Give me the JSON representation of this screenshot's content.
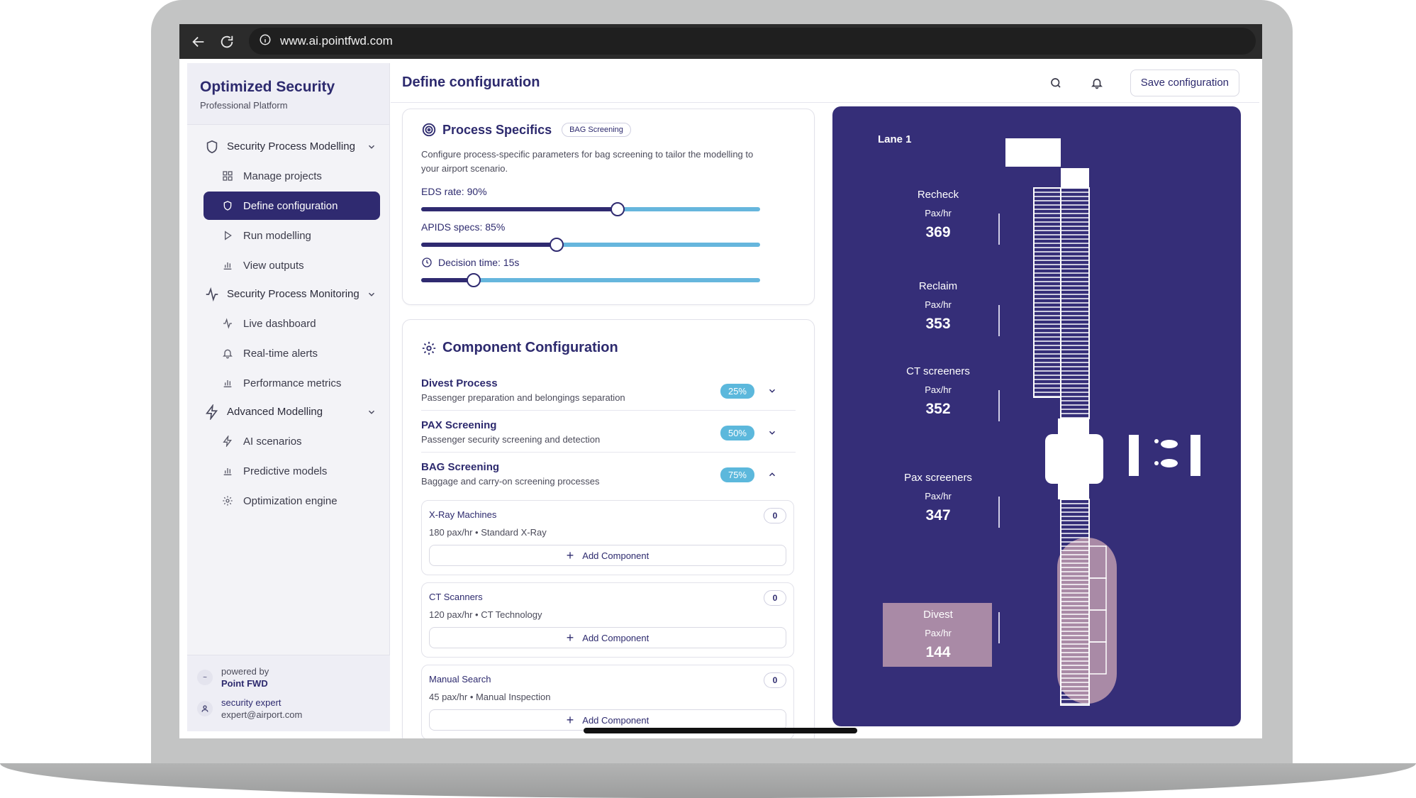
{
  "browser": {
    "url": "www.ai.pointfwd.com"
  },
  "sidebar": {
    "brand_title": "Optimized Security",
    "brand_subtitle": "Professional Platform",
    "groups": [
      {
        "label": "Security Process Modelling",
        "icon": "shield-icon",
        "items": [
          {
            "label": "Manage projects",
            "icon": "grid-icon"
          },
          {
            "label": "Define configuration",
            "icon": "shield-icon",
            "active": true
          },
          {
            "label": "Run modelling",
            "icon": "play-icon"
          },
          {
            "label": "View outputs",
            "icon": "bar-chart-icon"
          }
        ]
      },
      {
        "label": "Security Process Monitoring",
        "icon": "activity-icon",
        "items": [
          {
            "label": "Live dashboard",
            "icon": "activity-icon"
          },
          {
            "label": "Real-time alerts",
            "icon": "bell-icon"
          },
          {
            "label": "Performance metrics",
            "icon": "bar-chart-icon"
          }
        ]
      },
      {
        "label": "Advanced Modelling",
        "icon": "lightning-icon",
        "items": [
          {
            "label": "AI scenarios",
            "icon": "lightning-icon"
          },
          {
            "label": "Predictive models",
            "icon": "bar-chart-icon"
          },
          {
            "label": "Optimization engine",
            "icon": "gear-icon"
          }
        ]
      }
    ],
    "footer": {
      "powered_by": "powered by",
      "company": "Point FWD",
      "user_name": "security expert",
      "user_email": "expert@airport.com"
    }
  },
  "header": {
    "title": "Define configuration",
    "save_label": "Save configuration"
  },
  "process_specifics": {
    "title": "Process Specifics",
    "badge": "BAG Screening",
    "description": "Configure process-specific parameters for bag screening to tailor the modelling to your airport scenario.",
    "sliders": [
      {
        "label": "EDS rate: 90%",
        "value": 0.58
      },
      {
        "label": "APIDS specs: 85%",
        "value": 0.4
      },
      {
        "label": "Decision time: 15s",
        "value": 0.155
      }
    ]
  },
  "component_configuration": {
    "title": "Component Configuration",
    "rows": [
      {
        "name": "Divest Process",
        "description": "Passenger preparation and belongings separation",
        "percent": "25%",
        "expanded": false
      },
      {
        "name": "PAX Screening",
        "description": "Passenger security screening and detection",
        "percent": "50%",
        "expanded": false
      },
      {
        "name": "BAG Screening",
        "description": "Baggage and carry-on screening processes",
        "percent": "75%",
        "expanded": true
      }
    ],
    "components": [
      {
        "name": "X-Ray Machines",
        "meta": "180 pax/hr • Standard X-Ray",
        "count": "0",
        "button": "Add Component"
      },
      {
        "name": "CT Scanners",
        "meta": "120 pax/hr • CT Technology",
        "count": "0",
        "button": "Add Component"
      },
      {
        "name": "Manual Search",
        "meta": "45 pax/hr • Manual Inspection",
        "count": "0",
        "button": "Add Component"
      }
    ]
  },
  "lane": {
    "title": "Lane 1",
    "unit": "Pax/hr",
    "stats": [
      {
        "name": "Recheck",
        "value": "369"
      },
      {
        "name": "Reclaim",
        "value": "353"
      },
      {
        "name": "CT screeners",
        "value": "352"
      },
      {
        "name": "Pax screeners",
        "value": "347"
      },
      {
        "name": "Divest",
        "value": "144"
      }
    ]
  },
  "colors": {
    "primary": "#2f2a70",
    "accent": "#5cb8dc",
    "panel": "#352e78",
    "divest_highlight": "#a98aa6"
  }
}
